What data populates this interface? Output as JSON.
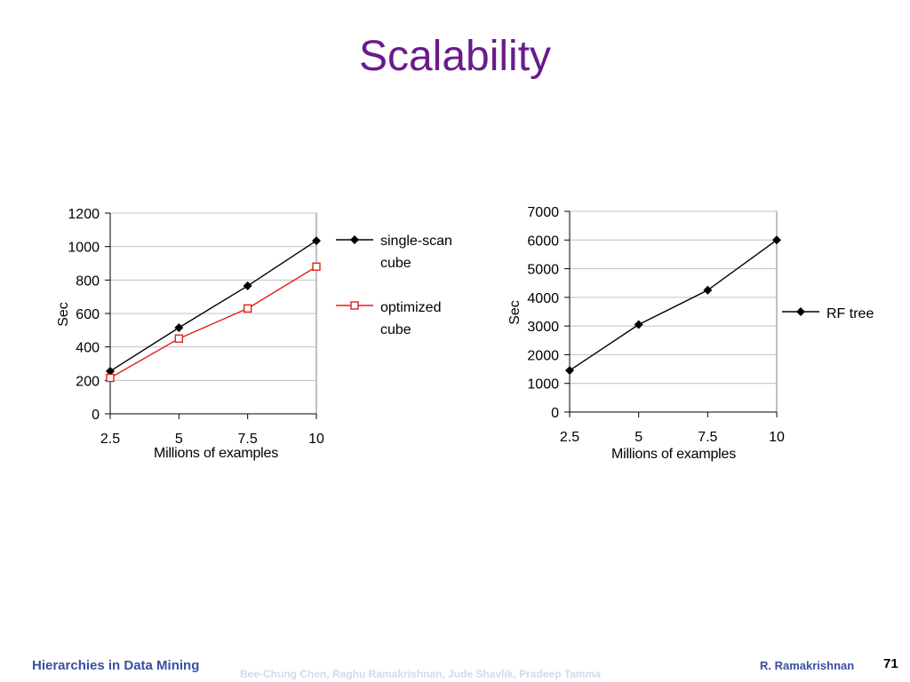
{
  "slide": {
    "title": "Scalability",
    "footer_left": "Hierarchies in Data Mining",
    "footer_center": "Bee-Chung Chen, Raghu Ramakrishnan, Jude Shavlik, Pradeep Tamma",
    "footer_right": "R. Ramakrishnan",
    "page_number": "71"
  },
  "chart_data": [
    {
      "type": "line",
      "x": [
        2.5,
        5,
        7.5,
        10
      ],
      "xticks": [
        "2.5",
        "5",
        "7.5",
        "10"
      ],
      "xlabel": "Millions of examples",
      "ylabel": "Sec",
      "ylim": [
        0,
        1200
      ],
      "yticks": [
        0,
        200,
        400,
        600,
        800,
        1000,
        1200
      ],
      "grid": true,
      "legend": "right",
      "series": [
        {
          "name": "single-scan cube",
          "values": [
            255,
            515,
            765,
            1035
          ],
          "color": "#000000",
          "marker": "diamond"
        },
        {
          "name": "optimized cube",
          "values": [
            215,
            450,
            630,
            880
          ],
          "color": "#E0201C",
          "marker": "square-open"
        }
      ]
    },
    {
      "type": "line",
      "x": [
        2.5,
        5,
        7.5,
        10
      ],
      "xticks": [
        "2.5",
        "5",
        "7.5",
        "10"
      ],
      "xlabel": "Millions of examples",
      "ylabel": "Sec",
      "ylim": [
        0,
        7000
      ],
      "yticks": [
        0,
        1000,
        2000,
        3000,
        4000,
        5000,
        6000,
        7000
      ],
      "grid": true,
      "legend": "right",
      "series": [
        {
          "name": "RF tree",
          "values": [
            1450,
            3050,
            4250,
            6000
          ],
          "color": "#000000",
          "marker": "diamond"
        }
      ]
    }
  ]
}
